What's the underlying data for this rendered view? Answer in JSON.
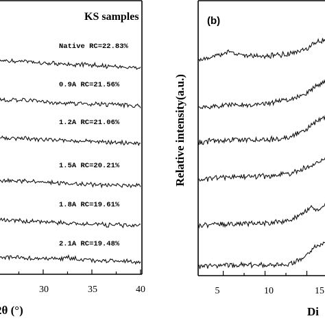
{
  "chart_data": [
    {
      "type": "line",
      "title": "KS samples",
      "xlabel": "2θ (°)",
      "xlim": [
        25,
        40
      ],
      "x_ticks": [
        "30",
        "35",
        "40"
      ],
      "series": [
        {
          "name": "Native",
          "annotation": "Native  RC=22.83%",
          "profile": [
            [
              25,
              0.62
            ],
            [
              28,
              0.55
            ],
            [
              31,
              0.42
            ],
            [
              34,
              0.34
            ],
            [
              37,
              0.25
            ],
            [
              40,
              0.18
            ]
          ]
        },
        {
          "name": "0.9A",
          "annotation": "0.9A  RC=21.56%",
          "profile": [
            [
              25,
              0.6
            ],
            [
              28,
              0.52
            ],
            [
              31,
              0.4
            ],
            [
              34,
              0.32
            ],
            [
              37,
              0.24
            ],
            [
              40,
              0.18
            ]
          ]
        },
        {
          "name": "1.2A",
          "annotation": "1.2A  RC=21.06%",
          "profile": [
            [
              25,
              0.58
            ],
            [
              28,
              0.5
            ],
            [
              31,
              0.4
            ],
            [
              34,
              0.3
            ],
            [
              37,
              0.23
            ],
            [
              40,
              0.18
            ]
          ]
        },
        {
          "name": "1.5A",
          "annotation": "1.5A  RC=20.21%",
          "profile": [
            [
              25,
              0.58
            ],
            [
              28,
              0.5
            ],
            [
              31,
              0.4
            ],
            [
              34,
              0.3
            ],
            [
              37,
              0.23
            ],
            [
              40,
              0.18
            ]
          ]
        },
        {
          "name": "1.8A",
          "annotation": "1.8A  RC=19.61%",
          "profile": [
            [
              25,
              0.6
            ],
            [
              28,
              0.5
            ],
            [
              31,
              0.4
            ],
            [
              34,
              0.3
            ],
            [
              37,
              0.23
            ],
            [
              40,
              0.18
            ]
          ]
        },
        {
          "name": "2.1A",
          "annotation": "2.1A  RC=19.48%",
          "profile": [
            [
              25,
              0.5
            ],
            [
              28,
              0.45
            ],
            [
              31,
              0.4
            ],
            [
              32.5,
              0.46
            ],
            [
              34,
              0.32
            ],
            [
              37,
              0.25
            ],
            [
              40,
              0.18
            ]
          ]
        }
      ]
    },
    {
      "type": "line",
      "panel_label": "(b)",
      "ylabel": "Relative intensity(a.u.)",
      "xlabel": "Di",
      "xlim": [
        2,
        17.5
      ],
      "x_ticks": [
        "5",
        "10",
        "15"
      ],
      "series": [
        {
          "profile": [
            [
              2,
              0.25
            ],
            [
              5,
              0.5
            ],
            [
              5.7,
              0.7
            ],
            [
              6.5,
              0.5
            ],
            [
              10,
              0.45
            ],
            [
              13,
              0.55
            ],
            [
              15,
              0.75
            ],
            [
              16,
              1.0
            ],
            [
              17.5,
              1.15
            ]
          ]
        },
        {
          "profile": [
            [
              2,
              0.15
            ],
            [
              5,
              0.22
            ],
            [
              10,
              0.3
            ],
            [
              13,
              0.45
            ],
            [
              15,
              0.75
            ],
            [
              16.5,
              1.1
            ],
            [
              17.5,
              1.25
            ]
          ]
        },
        {
          "profile": [
            [
              2,
              0.15
            ],
            [
              5,
              0.25
            ],
            [
              10,
              0.25
            ],
            [
              13,
              0.35
            ],
            [
              15,
              0.7
            ],
            [
              16.5,
              1.1
            ],
            [
              17.5,
              1.2
            ]
          ]
        },
        {
          "profile": [
            [
              2,
              0.1
            ],
            [
              5,
              0.22
            ],
            [
              10,
              0.25
            ],
            [
              13,
              0.35
            ],
            [
              15,
              0.6
            ],
            [
              16.5,
              0.9
            ],
            [
              17.5,
              1.0
            ]
          ]
        },
        {
          "profile": [
            [
              2,
              0.1
            ],
            [
              5,
              0.15
            ],
            [
              10,
              0.18
            ],
            [
              13,
              0.3
            ],
            [
              15,
              0.65
            ],
            [
              15.5,
              0.9
            ],
            [
              16,
              0.7
            ],
            [
              17.5,
              0.95
            ]
          ]
        },
        {
          "profile": [
            [
              2,
              0.1
            ],
            [
              5,
              0.15
            ],
            [
              10,
              0.15
            ],
            [
              13,
              0.2
            ],
            [
              15,
              0.5
            ],
            [
              16,
              0.9
            ],
            [
              17.5,
              1.05
            ]
          ]
        }
      ]
    }
  ]
}
